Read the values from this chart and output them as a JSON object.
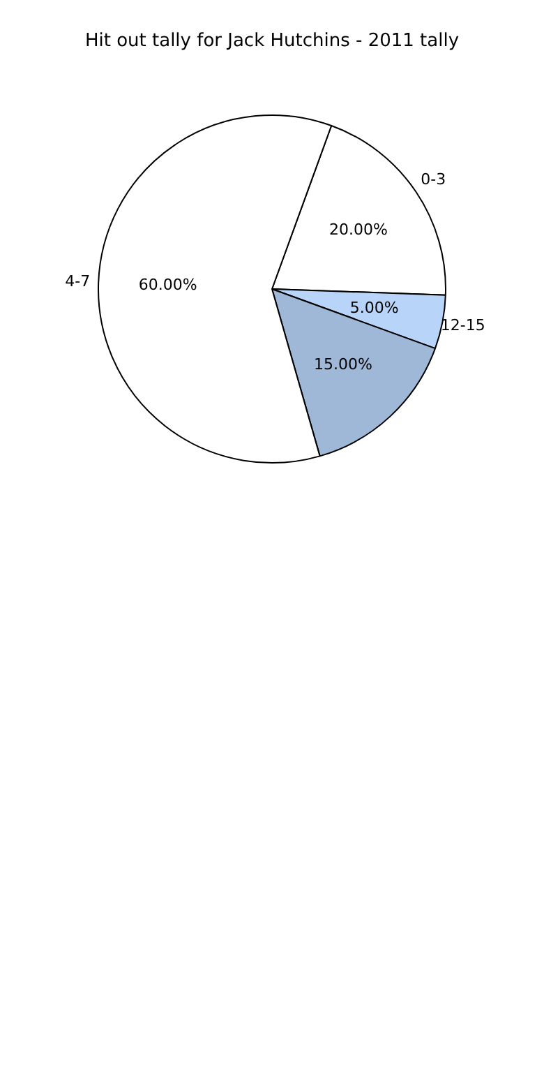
{
  "chart_data": {
    "type": "pie",
    "title": "Hit out tally for Jack Hutchins - 2011 tally",
    "categories": [
      "0-3",
      "12-15",
      null,
      "4-7"
    ],
    "values": [
      20,
      5,
      15,
      60
    ],
    "value_labels": [
      "20.00%",
      "5.00%",
      "15.00%",
      "60.00%"
    ],
    "colors": [
      "#ffffff",
      "#b8d4f8",
      "#9fb8d8",
      "#ffffff"
    ],
    "legend": false
  }
}
